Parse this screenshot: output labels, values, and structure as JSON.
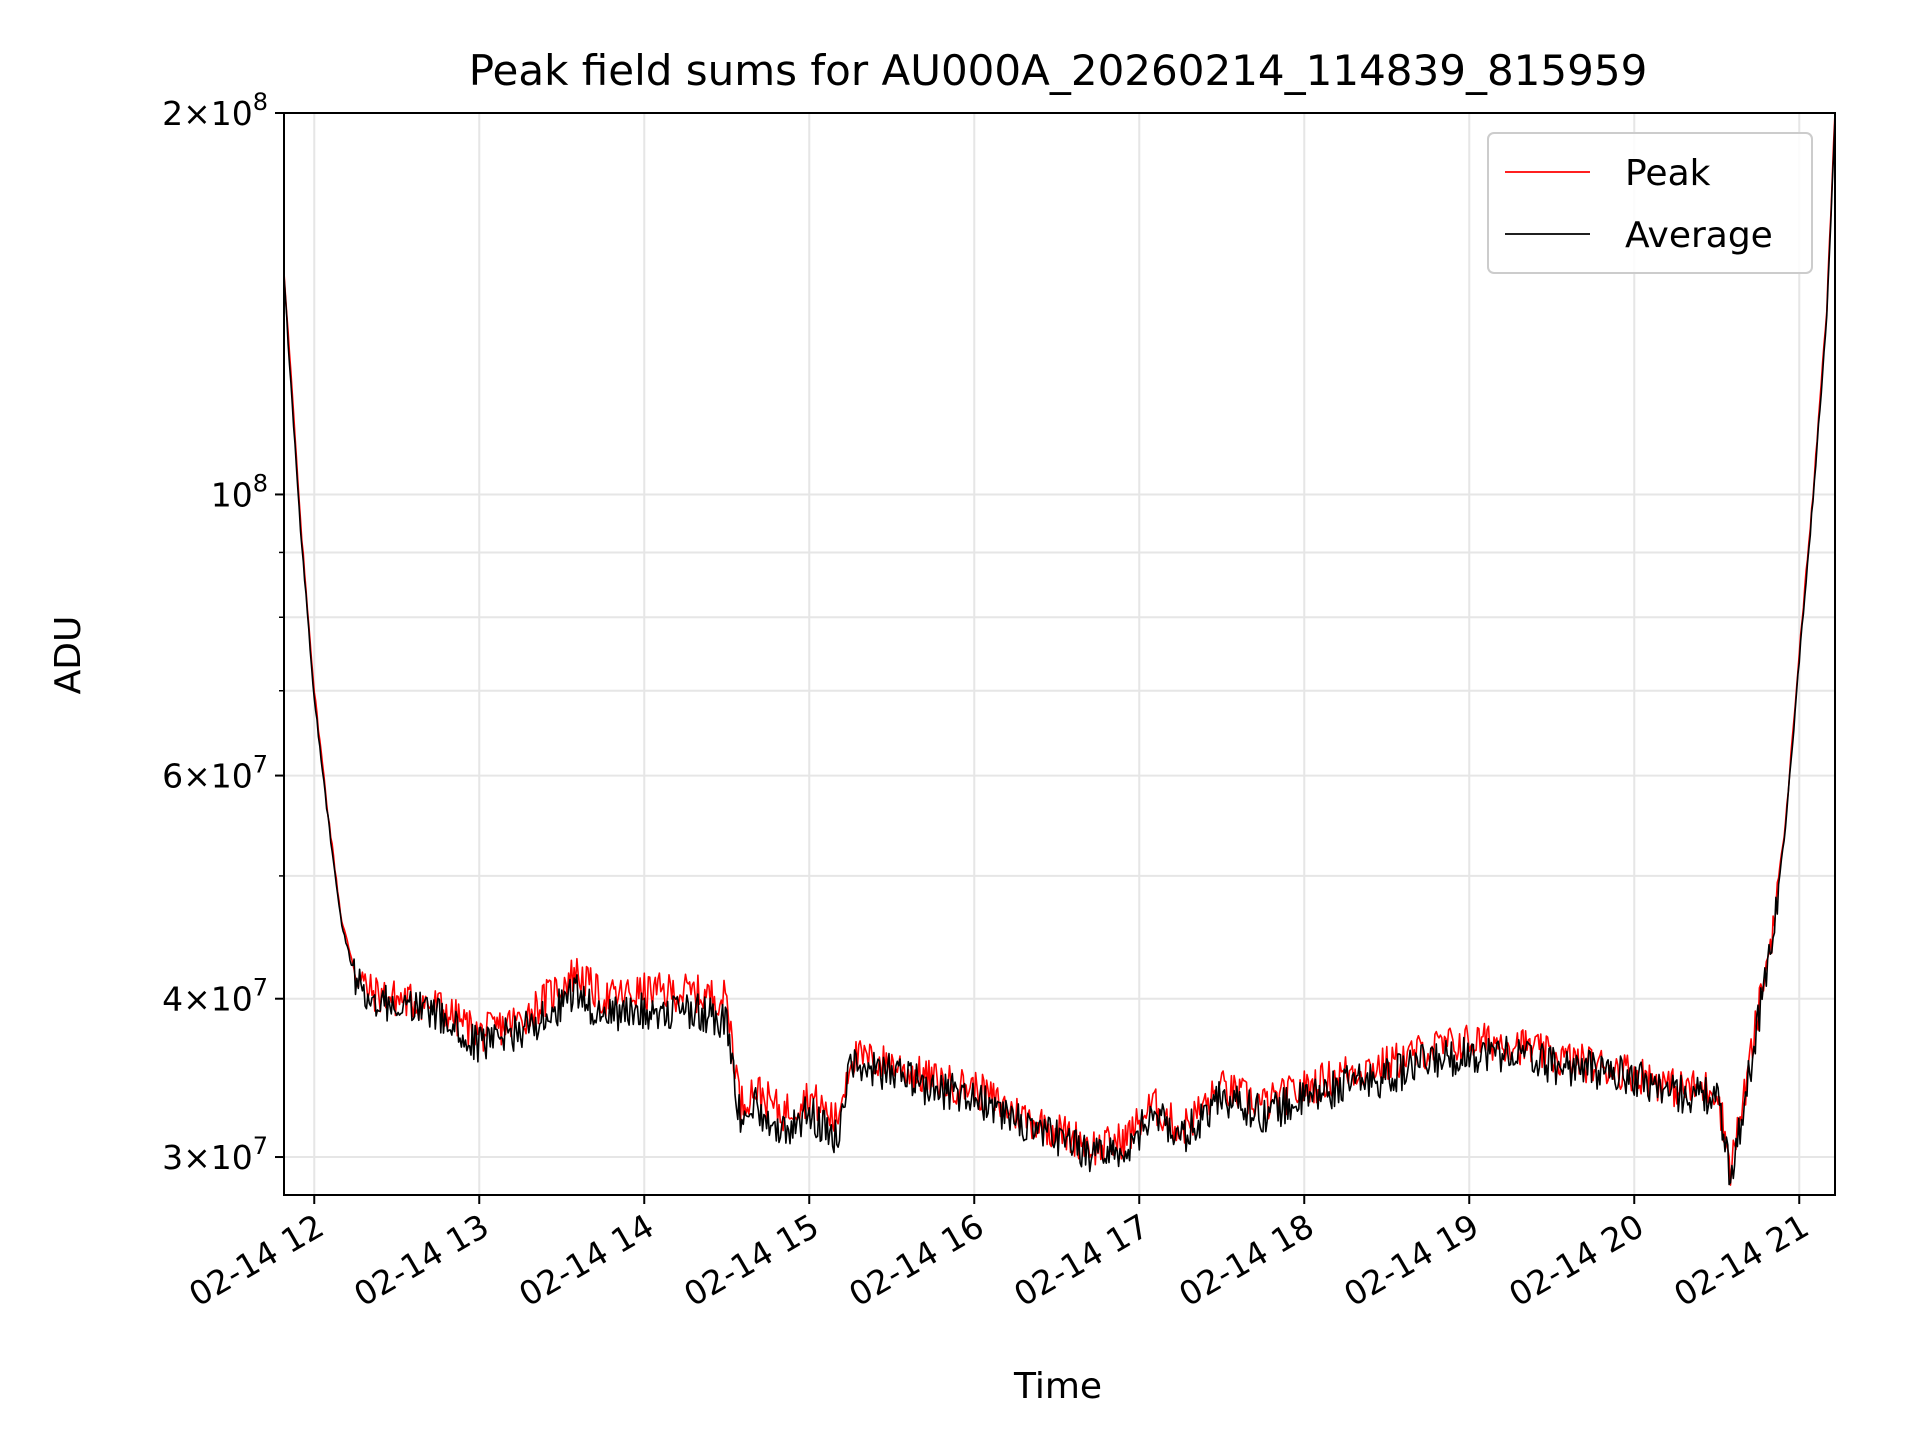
{
  "chart_data": {
    "type": "line",
    "title": "Peak field sums for AU000A_20260214_114839_815959",
    "xlabel": "Time",
    "ylabel": "ADU",
    "y_scale": "log",
    "ylim": [
      28000000,
      200000000
    ],
    "xlim": [
      "02-14 11:49",
      "02-14 21:13"
    ],
    "grid": true,
    "legend_position": "top-right",
    "x_ticks": [
      "02-14 12",
      "02-14 13",
      "02-14 14",
      "02-14 15",
      "02-14 16",
      "02-14 17",
      "02-14 18",
      "02-14 19",
      "02-14 20",
      "02-14 21"
    ],
    "y_ticks": [
      {
        "value": 30000000,
        "mantissa": "3",
        "exp": "7"
      },
      {
        "value": 40000000,
        "mantissa": "4",
        "exp": "7"
      },
      {
        "value": 60000000,
        "mantissa": "6",
        "exp": "7"
      },
      {
        "value": 100000000,
        "mantissa": "",
        "exp": "8"
      },
      {
        "value": 200000000,
        "mantissa": "2",
        "exp": "8"
      }
    ],
    "series": [
      {
        "name": "Peak",
        "color": "#ff0000",
        "x": [
          "02-14 11:49",
          "02-14 11:52",
          "02-14 11:55",
          "02-14 12:00",
          "02-14 12:05",
          "02-14 12:10",
          "02-14 12:15",
          "02-14 12:20",
          "02-14 12:30",
          "02-14 12:45",
          "02-14 13:00",
          "02-14 13:15",
          "02-14 13:30",
          "02-14 13:35",
          "02-14 13:45",
          "02-14 14:00",
          "02-14 14:15",
          "02-14 14:30",
          "02-14 14:35",
          "02-14 14:40",
          "02-14 14:50",
          "02-14 15:00",
          "02-14 15:10",
          "02-14 15:15",
          "02-14 15:30",
          "02-14 15:45",
          "02-14 16:00",
          "02-14 16:15",
          "02-14 16:30",
          "02-14 16:45",
          "02-14 16:55",
          "02-14 17:05",
          "02-14 17:15",
          "02-14 17:30",
          "02-14 17:45",
          "02-14 18:00",
          "02-14 18:15",
          "02-14 18:30",
          "02-14 18:45",
          "02-14 19:00",
          "02-14 19:15",
          "02-14 19:30",
          "02-14 19:45",
          "02-14 20:00",
          "02-14 20:15",
          "02-14 20:30",
          "02-14 20:35",
          "02-14 20:40",
          "02-14 20:45",
          "02-14 20:50",
          "02-14 20:55",
          "02-14 21:00",
          "02-14 21:05",
          "02-14 21:10",
          "02-14 21:13"
        ],
        "values": [
          150000000,
          120000000,
          95000000,
          70000000,
          56000000,
          46000000,
          42000000,
          40500000,
          40000000,
          39500000,
          37500000,
          38500000,
          41000000,
          42000000,
          40000000,
          40500000,
          40500000,
          40000000,
          33000000,
          34000000,
          32500000,
          33500000,
          32000000,
          36000000,
          35500000,
          34500000,
          34000000,
          32500000,
          31500000,
          30500000,
          31000000,
          33000000,
          31500000,
          34000000,
          33000000,
          34000000,
          35000000,
          35500000,
          36500000,
          37000000,
          37000000,
          36000000,
          35500000,
          35000000,
          34000000,
          34000000,
          29500000,
          33500000,
          39000000,
          45000000,
          55000000,
          75000000,
          100000000,
          140000000,
          200000000
        ]
      },
      {
        "name": "Average",
        "color": "#000000",
        "x": [
          "02-14 11:49",
          "02-14 11:52",
          "02-14 11:55",
          "02-14 12:00",
          "02-14 12:05",
          "02-14 12:10",
          "02-14 12:15",
          "02-14 12:20",
          "02-14 12:30",
          "02-14 12:45",
          "02-14 13:00",
          "02-14 13:15",
          "02-14 13:30",
          "02-14 13:35",
          "02-14 13:45",
          "02-14 14:00",
          "02-14 14:15",
          "02-14 14:30",
          "02-14 14:35",
          "02-14 14:40",
          "02-14 14:50",
          "02-14 15:00",
          "02-14 15:10",
          "02-14 15:15",
          "02-14 15:30",
          "02-14 15:45",
          "02-14 16:00",
          "02-14 16:15",
          "02-14 16:30",
          "02-14 16:45",
          "02-14 16:55",
          "02-14 17:05",
          "02-14 17:15",
          "02-14 17:30",
          "02-14 17:45",
          "02-14 18:00",
          "02-14 18:15",
          "02-14 18:30",
          "02-14 18:45",
          "02-14 19:00",
          "02-14 19:15",
          "02-14 19:30",
          "02-14 19:45",
          "02-14 20:00",
          "02-14 20:15",
          "02-14 20:30",
          "02-14 20:35",
          "02-14 20:40",
          "02-14 20:45",
          "02-14 20:50",
          "02-14 20:55",
          "02-14 21:00",
          "02-14 21:05",
          "02-14 21:10",
          "02-14 21:13"
        ],
        "values": [
          148000000,
          118000000,
          94000000,
          69000000,
          55500000,
          45500000,
          41500000,
          40000000,
          39500000,
          38800000,
          36800000,
          37800000,
          39500000,
          40500000,
          38800000,
          39200000,
          39300000,
          38500000,
          32000000,
          33000000,
          31500000,
          32500000,
          31000000,
          35500000,
          35000000,
          34000000,
          33500000,
          32000000,
          31000000,
          30000000,
          30500000,
          32500000,
          31000000,
          33500000,
          32500000,
          33300000,
          34200000,
          34700000,
          35700000,
          36200000,
          36300000,
          35500000,
          35200000,
          34700000,
          33700000,
          33500000,
          29000000,
          33000000,
          38500000,
          44500000,
          54500000,
          74000000,
          99000000,
          138000000,
          198000000
        ]
      }
    ]
  }
}
